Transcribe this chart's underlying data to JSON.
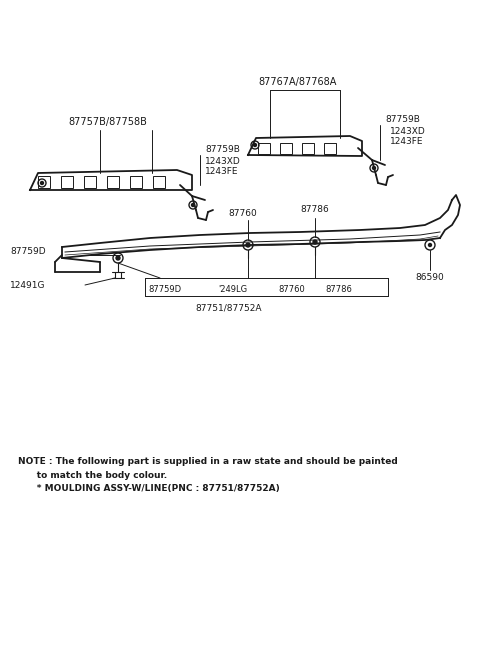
{
  "bg_color": "#ffffff",
  "fig_width": 4.8,
  "fig_height": 6.57,
  "dpi": 100,
  "note_line1": "NOTE : The following part is supplied in a raw state and should be painted",
  "note_line2": "      to match the body colour.",
  "note_line3": "      * MOULDING ASSY-W/LINE(PNC : 87751/87752A)"
}
